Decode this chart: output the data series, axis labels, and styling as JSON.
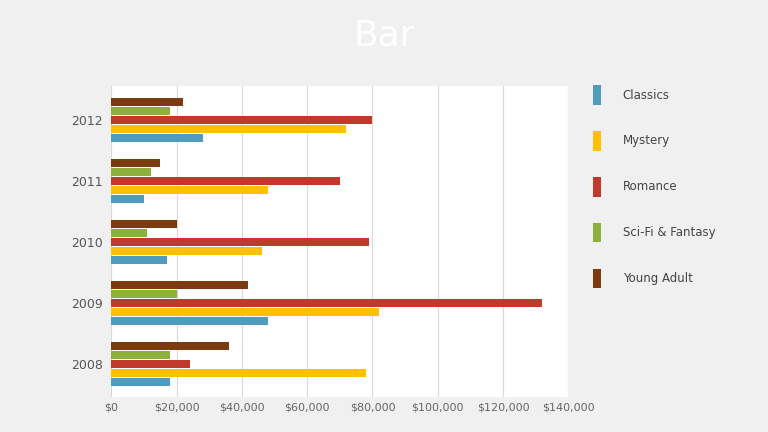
{
  "title": "Bar",
  "title_bg_color": "#2E7049",
  "title_text_color": "#FFFFFF",
  "years": [
    2012,
    2011,
    2010,
    2009,
    2008
  ],
  "categories": [
    "Classics",
    "Mystery",
    "Romance",
    "Sci-Fi & Fantasy",
    "Young Adult"
  ],
  "colors": {
    "Classics": "#4E9DBF",
    "Mystery": "#FFC000",
    "Romance": "#C0392B",
    "Sci-Fi & Fantasy": "#8DB03C",
    "Young Adult": "#7B3A10"
  },
  "data": {
    "2012": {
      "Classics": 28000,
      "Mystery": 72000,
      "Romance": 80000,
      "Sci-Fi & Fantasy": 18000,
      "Young Adult": 22000
    },
    "2011": {
      "Classics": 10000,
      "Mystery": 48000,
      "Romance": 70000,
      "Sci-Fi & Fantasy": 12000,
      "Young Adult": 15000
    },
    "2010": {
      "Classics": 17000,
      "Mystery": 46000,
      "Romance": 79000,
      "Sci-Fi & Fantasy": 11000,
      "Young Adult": 20000
    },
    "2009": {
      "Classics": 48000,
      "Mystery": 82000,
      "Romance": 132000,
      "Sci-Fi & Fantasy": 20000,
      "Young Adult": 42000
    },
    "2008": {
      "Classics": 18000,
      "Mystery": 78000,
      "Romance": 24000,
      "Sci-Fi & Fantasy": 18000,
      "Young Adult": 36000
    }
  },
  "xlim": [
    0,
    140000
  ],
  "xticks": [
    0,
    20000,
    40000,
    60000,
    80000,
    100000,
    120000,
    140000
  ],
  "xticklabels": [
    "$0",
    "$20,000",
    "$40,000",
    "$60,000",
    "$80,000",
    "$100,000",
    "$120,000",
    "$140,000"
  ],
  "bg_color": "#F0F0F0",
  "plot_bg_color": "#FFFFFF",
  "grid_color": "#D8D8D8",
  "bar_height": 0.13,
  "bar_gap": 0.015
}
